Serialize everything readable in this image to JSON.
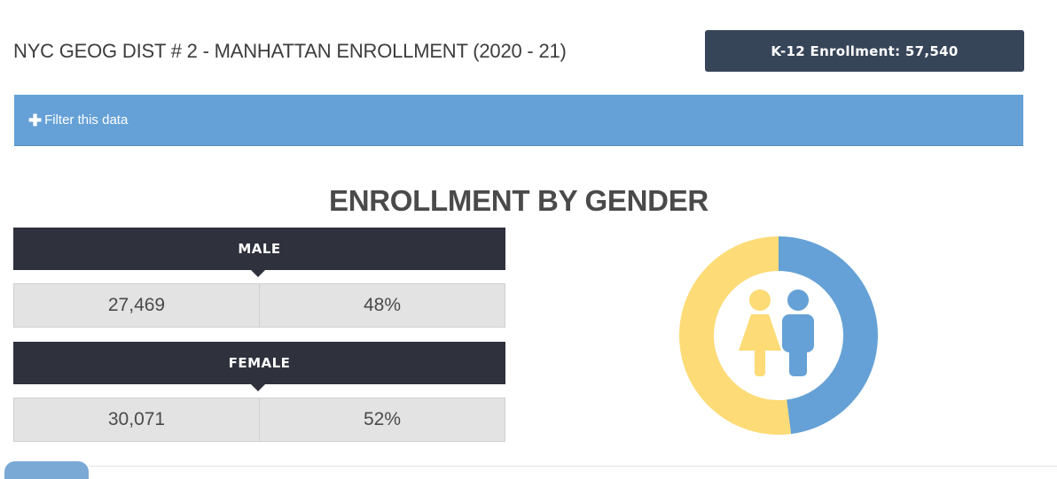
{
  "header": {
    "title": "NYC GEOG DIST # 2 - MANHATTAN ENROLLMENT (2020 - 21)",
    "badge": "K-12 Enrollment: 57,540"
  },
  "filter": {
    "icon": "plus-icon",
    "label": "Filter this data"
  },
  "section": {
    "title": "ENROLLMENT BY GENDER",
    "groups": [
      {
        "label": "MALE",
        "count": "27,469",
        "percent": "48%"
      },
      {
        "label": "FEMALE",
        "count": "30,071",
        "percent": "52%"
      }
    ]
  },
  "chart": {
    "icons": [
      "female-figure-icon",
      "male-figure-icon"
    ],
    "slices": [
      {
        "group": "MALE",
        "share": 48,
        "color": "#65a1d6"
      },
      {
        "group": "FEMALE",
        "share": 52,
        "color": "#fddb76"
      }
    ]
  },
  "colors": {
    "accent_blue": "#65a1d6",
    "dark_navy": "#374559",
    "dark_header": "#2f323d",
    "female_yellow": "#fddb76"
  }
}
